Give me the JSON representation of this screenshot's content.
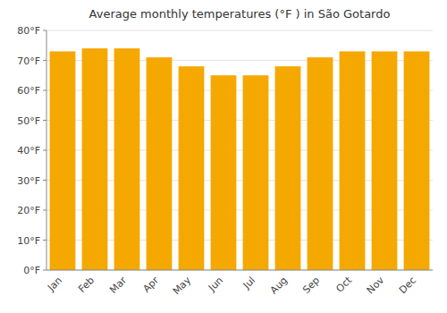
{
  "chart_data": {
    "type": "bar",
    "title": "Average monthly temperatures (°F ) in São Gotardo",
    "categories": [
      "Jan",
      "Feb",
      "Mar",
      "Apr",
      "May",
      "Jun",
      "Jul",
      "Aug",
      "Sep",
      "Oct",
      "Nov",
      "Dec"
    ],
    "values": [
      73,
      74,
      74,
      71,
      68,
      65,
      65,
      68,
      71,
      73,
      73,
      73
    ],
    "color": "#F5A800",
    "ylim": [
      0,
      80
    ],
    "yticks": [
      {
        "value": 0,
        "label": "0°F"
      },
      {
        "value": 10,
        "label": "10°F"
      },
      {
        "value": 20,
        "label": "20°F"
      },
      {
        "value": 30,
        "label": "30°F"
      },
      {
        "value": 40,
        "label": "40°F"
      },
      {
        "value": 50,
        "label": "50°F"
      },
      {
        "value": 60,
        "label": "60°F"
      },
      {
        "value": 70,
        "label": "70°F"
      },
      {
        "value": 80,
        "label": "80°F"
      }
    ],
    "grid": true
  }
}
